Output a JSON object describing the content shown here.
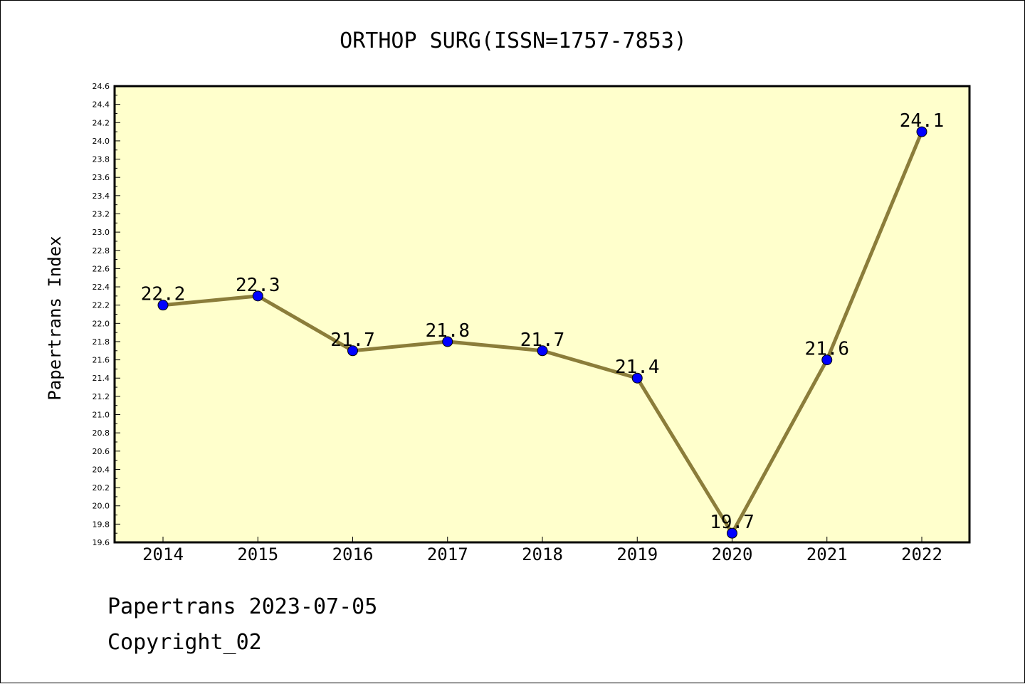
{
  "colors": {
    "plot_background": "#ffffcc",
    "line": "#8b7d3a",
    "marker": "#0000ff"
  },
  "footer": {
    "date_line": "Papertrans 2023-07-05",
    "copyright": "Copyright_02"
  },
  "chart_data": {
    "type": "line",
    "title": "ORTHOP SURG(ISSN=1757-7853)",
    "xlabel": "",
    "ylabel": "Papertrans Index",
    "categories": [
      "2014",
      "2015",
      "2016",
      "2017",
      "2018",
      "2019",
      "2020",
      "2021",
      "2022"
    ],
    "series": [
      {
        "values": [
          22.2,
          22.3,
          21.7,
          21.8,
          21.7,
          21.4,
          19.7,
          21.6,
          24.1
        ],
        "data_labels": [
          "22.2",
          "22.3",
          "21.7",
          "21.8",
          "21.7",
          "21.4",
          "19.7",
          "21.6",
          "24.1"
        ]
      }
    ],
    "ylim": [
      19.6,
      24.6
    ],
    "y_ticks": [
      "19.6",
      "19.8",
      "20.0",
      "20.2",
      "20.4",
      "20.6",
      "20.8",
      "21.0",
      "21.2",
      "21.4",
      "21.6",
      "21.8",
      "22.0",
      "22.2",
      "22.4",
      "22.6",
      "22.8",
      "23.0",
      "23.2",
      "23.4",
      "23.6",
      "23.8",
      "24.0",
      "24.2",
      "24.4",
      "24.6"
    ],
    "grid": false,
    "legend": "none"
  }
}
